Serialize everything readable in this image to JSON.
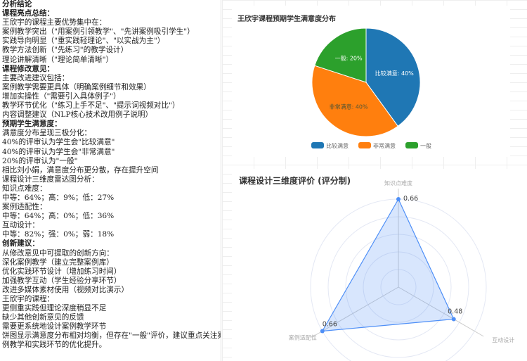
{
  "left_panel": {
    "lines": [
      {
        "text": "分析结论",
        "bold": true
      },
      {
        "text": "课程亮点总结：",
        "bold": true
      },
      {
        "text": "王欣宇的课程主要优势集中在：",
        "bold": false
      },
      {
        "text": "案例教学突出（\"用案例引领教学\"、\"先讲案例吸引学生\"）",
        "bold": false
      },
      {
        "text": "实践导向明显（\"重实践轻理论\"、\"以实战为主\"）",
        "bold": false
      },
      {
        "text": "教学方法创新（\"先练习\"的教学设计）",
        "bold": false
      },
      {
        "text": "理论讲解清晰（\"理论简单清晰\"）",
        "bold": false
      },
      {
        "text": "课程修改意见：",
        "bold": true
      },
      {
        "text": "主要改进建议包括：",
        "bold": false
      },
      {
        "text": "案例教学需要更具体（明确案例细节和效果）",
        "bold": false
      },
      {
        "text": "增加实操性（\"需要引入具体例子\"）",
        "bold": false
      },
      {
        "text": "教学环节优化（\"练习上手不足\"、\"提示词视频对比\"）",
        "bold": false
      },
      {
        "text": "内容调整建议（NLP核心技术改用例子说明）",
        "bold": false
      },
      {
        "text": "预期学生满意度：",
        "bold": true
      },
      {
        "text": "满意度分布呈现三极分化：",
        "bold": false
      },
      {
        "text": "40%的评审认为学生会\"比较满意\"",
        "bold": false
      },
      {
        "text": "40%的评审认为学生会\"非常满意\"",
        "bold": false
      },
      {
        "text": "20%的评审认为\"一般\"",
        "bold": false
      },
      {
        "text": "相比刘小娟，满意度分布更分散，存在提升空间",
        "bold": false
      },
      {
        "text": "课程设计三维度雷达图分析：",
        "bold": false
      },
      {
        "text": "知识点难度：",
        "bold": false
      },
      {
        "text": "中等：64%；高：9%；低：27%",
        "bold": false
      },
      {
        "text": "案例适配性：",
        "bold": false
      },
      {
        "text": "中等：64%；高：0%；低：36%",
        "bold": false
      },
      {
        "text": "互动设计：",
        "bold": false
      },
      {
        "text": "中等：82%；强：0%；弱：18%",
        "bold": false
      },
      {
        "text": "创新建议：",
        "bold": true
      },
      {
        "text": "从修改意见中可提取的创新方向：",
        "bold": false
      },
      {
        "text": "深化案例教学（建立完整案例库）",
        "bold": false
      },
      {
        "text": "优化实践环节设计（增加练习时间）",
        "bold": false
      },
      {
        "text": "加强教学互动（学生经验分享环节）",
        "bold": false
      },
      {
        "text": "改进多媒体素材使用（视频对比演示）",
        "bold": false
      },
      {
        "text": "王欣宇的课程：",
        "bold": false
      },
      {
        "text": "更侧重实践但理论深度稍显不足",
        "bold": false
      },
      {
        "text": "缺少其他创新意见的反馈",
        "bold": false
      },
      {
        "text": "需要更系统地设计案例教学环节",
        "bold": false
      },
      {
        "text": "饼图显示满意度分布相对均衡，但存在\"一般\"评价，建议重点关注案",
        "bold": false
      },
      {
        "text": "例教学和实践环节的优化提升。",
        "bold": false
      }
    ]
  },
  "chart_data": [
    {
      "type": "pie",
      "title": "王欣宇课程预期学生满意度分布",
      "categories": [
        "比较满意",
        "非常满意",
        "一般"
      ],
      "values": [
        40,
        40,
        20
      ],
      "labels": [
        "比较满意: 40%",
        "非常满意: 40%",
        "一般: 20%"
      ],
      "colors": [
        "#1f77b4",
        "#ff7f0e",
        "#2ca02c"
      ],
      "legend": "bottom"
    },
    {
      "type": "radar",
      "title": "课程设计三维度评价 (评分制)",
      "axes": [
        "知识点难度",
        "互动设计",
        "案例适配性"
      ],
      "values": [
        0.66,
        0.48,
        0.66
      ],
      "value_labels": [
        "0.66",
        "0.48",
        "0.66"
      ],
      "max": 0.66,
      "rings": 5,
      "color": "#4e8ff7"
    }
  ]
}
